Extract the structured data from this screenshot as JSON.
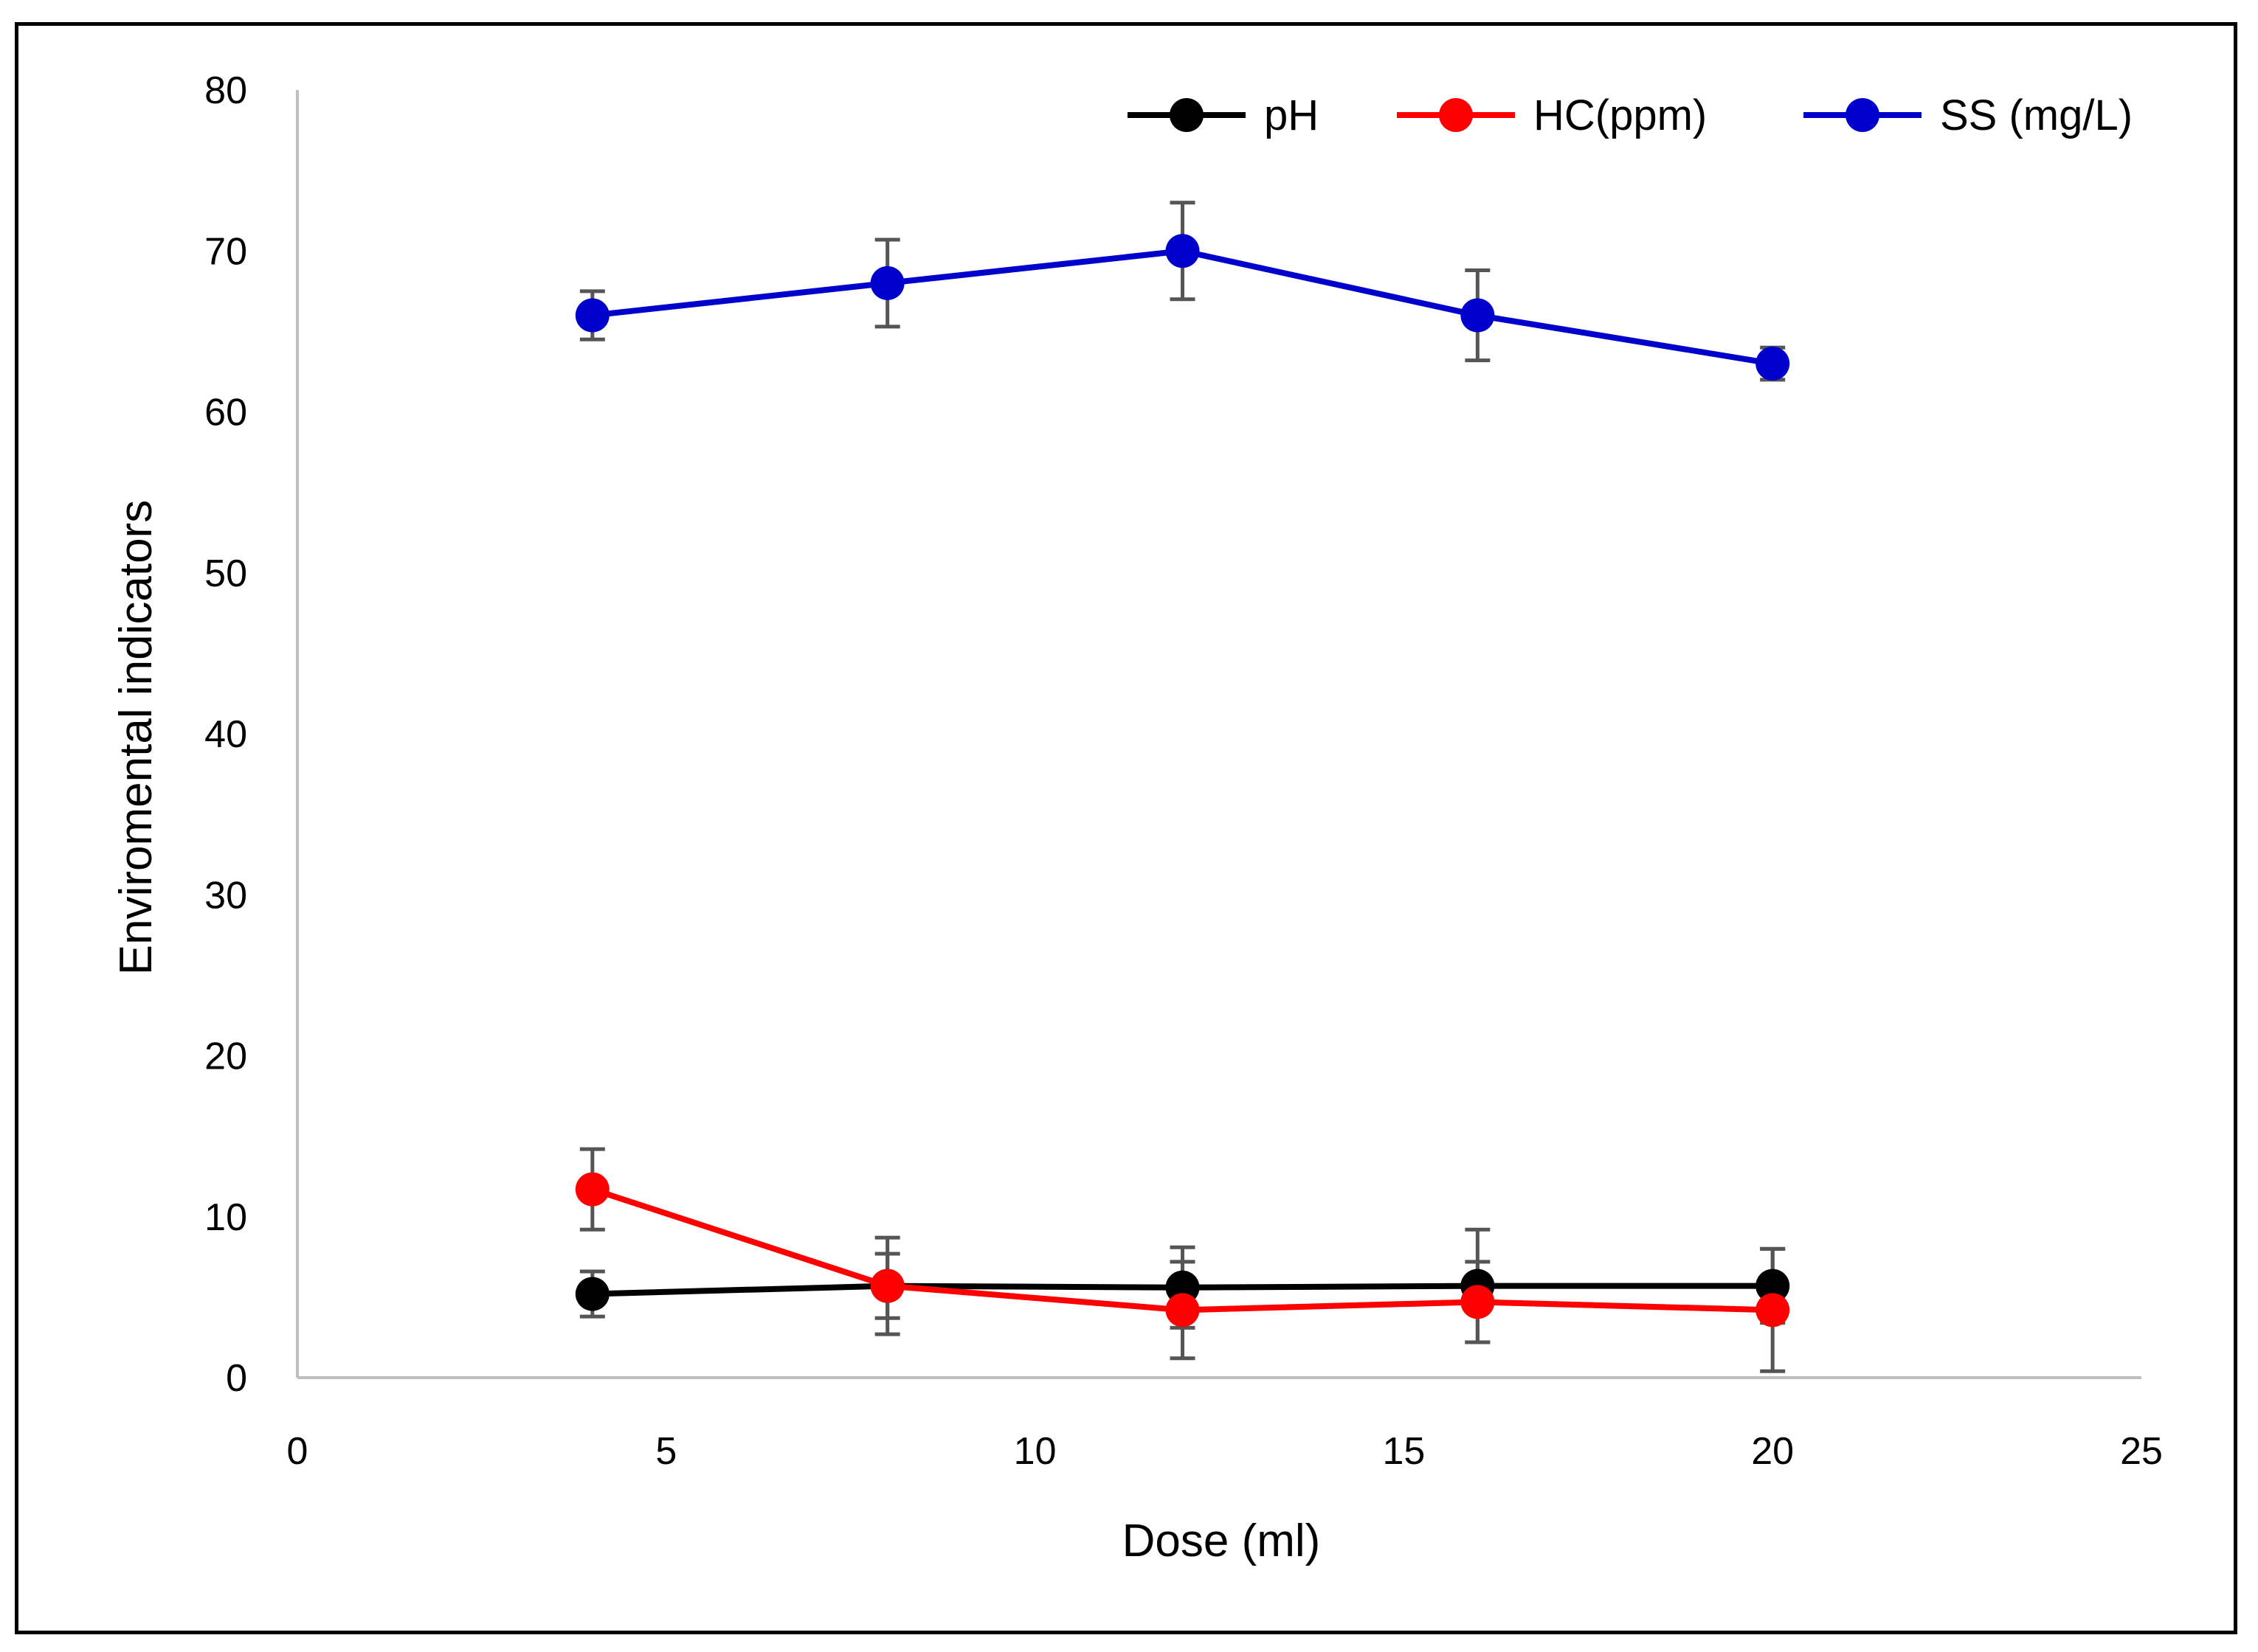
{
  "chart_data": {
    "type": "line",
    "title": "",
    "xlabel": "Dose (ml)",
    "ylabel": "Enviromental indicators",
    "xlim": [
      0,
      25
    ],
    "ylim": [
      0,
      80
    ],
    "x_ticks": [
      0,
      5,
      10,
      15,
      20,
      25
    ],
    "y_ticks": [
      0,
      10,
      20,
      30,
      40,
      50,
      60,
      70,
      80
    ],
    "grid": false,
    "legend_position": "top-right",
    "x": [
      4,
      8,
      12,
      16,
      20
    ],
    "series": [
      {
        "name": "pH",
        "color": "#000000",
        "values": [
          5.2,
          5.7,
          5.6,
          5.7,
          5.7
        ],
        "errors": [
          1.4,
          3.0,
          2.5,
          3.5,
          2.3
        ]
      },
      {
        "name": "HC(ppm)",
        "color": "#ff0000",
        "values": [
          11.7,
          5.7,
          4.2,
          4.7,
          4.2
        ],
        "errors": [
          2.5,
          2.0,
          3.0,
          2.5,
          3.8
        ]
      },
      {
        "name": "SS (mg/L)",
        "color": "#0000cc",
        "values": [
          66,
          68,
          70,
          66,
          63
        ],
        "errors": [
          1.5,
          2.7,
          3.0,
          2.8,
          1.0
        ]
      }
    ]
  }
}
